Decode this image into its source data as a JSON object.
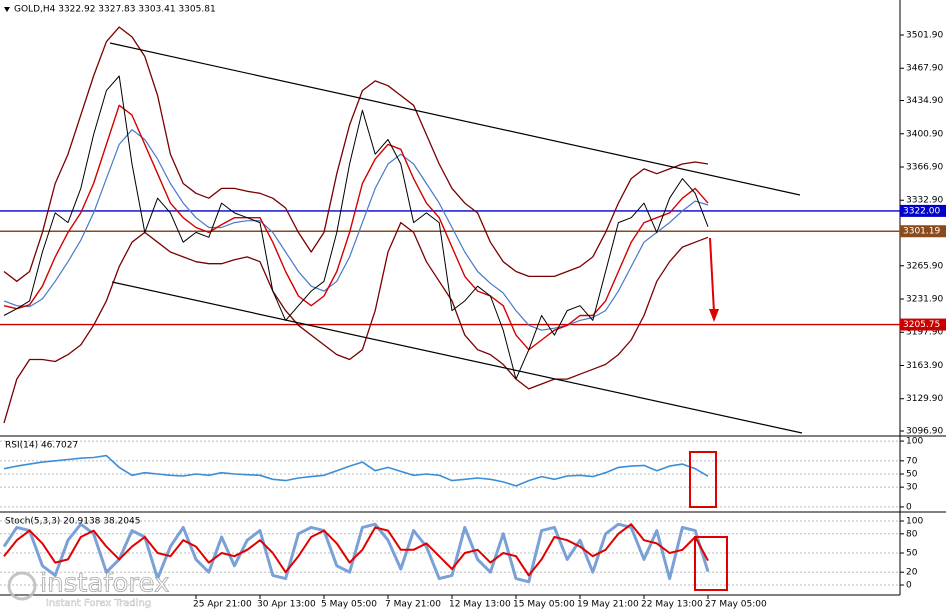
{
  "chart_data": [
    {
      "type": "line",
      "title": "GOLD,H4  3322.92 3327.83 3303.41 3305.81",
      "ylim": [
        3092.8,
        3537.7
      ],
      "yticks": [
        {
          "value": 3501.9,
          "label": "3501.90"
        },
        {
          "value": 3467.9,
          "label": "3467.90"
        },
        {
          "value": 3434.9,
          "label": "3434.90"
        },
        {
          "value": 3400.9,
          "label": "3400.90"
        },
        {
          "value": 3366.9,
          "label": "3366.90"
        },
        {
          "value": 3332.9,
          "label": "3332.90"
        },
        {
          "value": 3265.9,
          "label": "3265.90"
        },
        {
          "value": 3231.9,
          "label": "3231.90"
        },
        {
          "value": 3197.9,
          "label": "3197.90"
        },
        {
          "value": 3163.9,
          "label": "3163.90"
        },
        {
          "value": 3129.9,
          "label": "3129.90"
        },
        {
          "value": 3096.9,
          "label": "3096.90"
        }
      ],
      "grid": false,
      "hlines": [
        {
          "value": 3322,
          "label": "3322.00",
          "color": "#0000c8"
        },
        {
          "value": 3301.19,
          "label": "3301.19",
          "color": "#8b4a1c"
        },
        {
          "value": 3205.75,
          "label": "3205.75",
          "color": "#c80000"
        }
      ],
      "series": [
        {
          "color": "#7a0000",
          "values": [
            3260,
            3250,
            3260,
            3300,
            3350,
            3380,
            3420,
            3460,
            3495,
            3510,
            3500,
            3480,
            3440,
            3380,
            3350,
            3340,
            3335,
            3345,
            3345,
            3342,
            3340,
            3335,
            3325,
            3300,
            3280,
            3300,
            3360,
            3410,
            3445,
            3455,
            3450,
            3440,
            3430,
            3400,
            3370,
            3345,
            3330,
            3320,
            3290,
            3270,
            3260,
            3255,
            3255,
            3255,
            3260,
            3265,
            3275,
            3300,
            3330,
            3355,
            3365,
            3360,
            3365,
            3370,
            3372,
            3370
          ]
        },
        {
          "color": "#7a0000",
          "values": [
            3105,
            3150,
            3170,
            3170,
            3168,
            3175,
            3185,
            3205,
            3230,
            3265,
            3290,
            3300,
            3290,
            3280,
            3275,
            3270,
            3268,
            3268,
            3272,
            3275,
            3270,
            3240,
            3220,
            3205,
            3195,
            3185,
            3175,
            3170,
            3180,
            3220,
            3280,
            3310,
            3300,
            3270,
            3250,
            3230,
            3195,
            3180,
            3175,
            3165,
            3150,
            3140,
            3145,
            3150,
            3150,
            3155,
            3160,
            3165,
            3175,
            3190,
            3215,
            3250,
            3270,
            3285,
            3290,
            3295
          ]
        },
        {
          "color": "#4a78c8",
          "values": [
            3230,
            3225,
            3224,
            3232,
            3250,
            3270,
            3292,
            3320,
            3355,
            3390,
            3405,
            3395,
            3375,
            3350,
            3330,
            3315,
            3305,
            3305,
            3310,
            3312,
            3312,
            3300,
            3280,
            3260,
            3245,
            3240,
            3250,
            3275,
            3310,
            3345,
            3370,
            3380,
            3370,
            3350,
            3330,
            3305,
            3280,
            3260,
            3248,
            3238,
            3220,
            3205,
            3200,
            3202,
            3205,
            3210,
            3213,
            3220,
            3240,
            3265,
            3290,
            3300,
            3310,
            3322,
            3332,
            3328
          ]
        },
        {
          "color": "#d40000",
          "values": [
            3225,
            3222,
            3226,
            3245,
            3275,
            3300,
            3320,
            3350,
            3390,
            3430,
            3420,
            3390,
            3360,
            3330,
            3315,
            3305,
            3300,
            3308,
            3315,
            3315,
            3315,
            3290,
            3260,
            3235,
            3225,
            3235,
            3260,
            3300,
            3350,
            3375,
            3390,
            3385,
            3355,
            3330,
            3315,
            3285,
            3255,
            3240,
            3235,
            3225,
            3195,
            3180,
            3190,
            3200,
            3205,
            3215,
            3215,
            3230,
            3260,
            3290,
            3310,
            3315,
            3320,
            3335,
            3345,
            3330
          ]
        },
        {
          "color": "#000000",
          "values": [
            3215,
            3222,
            3230,
            3280,
            3320,
            3310,
            3345,
            3400,
            3445,
            3460,
            3370,
            3300,
            3335,
            3320,
            3290,
            3300,
            3295,
            3330,
            3320,
            3315,
            3310,
            3240,
            3210,
            3225,
            3240,
            3250,
            3300,
            3370,
            3425,
            3380,
            3395,
            3370,
            3310,
            3320,
            3310,
            3220,
            3230,
            3245,
            3235,
            3200,
            3150,
            3180,
            3215,
            3195,
            3220,
            3225,
            3210,
            3260,
            3310,
            3315,
            3330,
            3300,
            3335,
            3355,
            3340,
            3305.81
          ]
        }
      ]
    },
    {
      "type": "line",
      "title": "RSI(14) 46.7027",
      "ylim": [
        -6.2,
        106.2
      ],
      "yticks": [
        100,
        70,
        50,
        30,
        0
      ],
      "grid": true,
      "series": [
        {
          "color": "#3a8fd8",
          "values": [
            58,
            62,
            65,
            68,
            70,
            72,
            74,
            75,
            78,
            60,
            48,
            52,
            50,
            48,
            47,
            50,
            48,
            52,
            50,
            49,
            48,
            42,
            40,
            44,
            46,
            48,
            55,
            62,
            68,
            55,
            60,
            54,
            48,
            50,
            48,
            40,
            42,
            44,
            42,
            38,
            32,
            40,
            46,
            42,
            47,
            48,
            46,
            52,
            60,
            62,
            63,
            55,
            62,
            65,
            58,
            46.7027
          ]
        }
      ]
    },
    {
      "type": "line",
      "title": "Stoch(5,3,3) 20.9138 38.2045",
      "ylim": [
        -15.6,
        112.5
      ],
      "yticks": [
        100,
        80,
        50,
        20,
        0
      ],
      "grid": true,
      "categories": [
        null,
        null,
        null,
        null,
        null,
        null,
        null,
        null,
        null,
        null,
        null,
        null,
        null,
        null,
        null,
        "25 Apr 21:00",
        null,
        null,
        null,
        null,
        "30 Apr 13:00",
        null,
        null,
        null,
        null,
        "5 May 05:00",
        null,
        null,
        null,
        null,
        "7 May 21:00",
        null,
        null,
        null,
        null,
        "12 May 13:00",
        null,
        null,
        null,
        null,
        "15 May 05:00",
        null,
        null,
        null,
        null,
        "19 May 21:00",
        null,
        null,
        null,
        null,
        "22 May 13:00",
        null,
        null,
        null,
        null,
        "27 May 05:00"
      ],
      "series": [
        {
          "color": "#7aa0d8",
          "values": [
            60,
            90,
            85,
            30,
            15,
            70,
            95,
            80,
            20,
            40,
            85,
            75,
            10,
            60,
            90,
            40,
            20,
            75,
            30,
            70,
            85,
            15,
            10,
            80,
            90,
            85,
            30,
            20,
            90,
            95,
            70,
            25,
            85,
            60,
            10,
            15,
            90,
            40,
            20,
            80,
            10,
            5,
            85,
            90,
            40,
            70,
            20,
            80,
            95,
            90,
            40,
            85,
            10,
            90,
            85,
            20.9138
          ]
        },
        {
          "color": "#e00000",
          "values": [
            45,
            70,
            85,
            65,
            35,
            40,
            75,
            85,
            60,
            40,
            60,
            75,
            50,
            45,
            70,
            60,
            35,
            50,
            45,
            55,
            70,
            50,
            20,
            45,
            75,
            85,
            65,
            35,
            55,
            90,
            85,
            55,
            55,
            65,
            45,
            25,
            50,
            55,
            35,
            50,
            45,
            15,
            40,
            75,
            70,
            60,
            45,
            55,
            80,
            95,
            70,
            65,
            50,
            55,
            75,
            38.2045
          ]
        }
      ]
    }
  ],
  "watermark": {
    "brand": "instaforex",
    "tagline": "Instant Forex Trading"
  }
}
